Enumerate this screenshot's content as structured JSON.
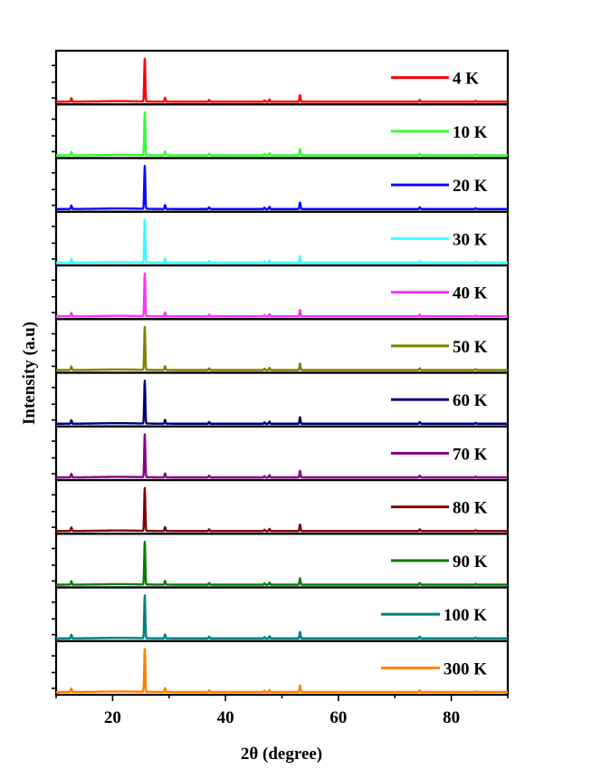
{
  "chart_data": {
    "type": "line",
    "layout": "stacked-panels",
    "xlabel": "2θ (degree)",
    "ylabel": "Intensity (a.u)",
    "xlim": [
      10,
      90
    ],
    "xticks": [
      20,
      40,
      60,
      80
    ],
    "grid": false,
    "legend_position": "top-right of each panel",
    "peaks": [
      {
        "two_theta": 12.7,
        "relative_intensity": 0.08
      },
      {
        "two_theta": 25.7,
        "relative_intensity": 1.0
      },
      {
        "two_theta": 29.3,
        "relative_intensity": 0.09
      },
      {
        "two_theta": 37.1,
        "relative_intensity": 0.04
      },
      {
        "two_theta": 46.9,
        "relative_intensity": 0.03
      },
      {
        "two_theta": 47.8,
        "relative_intensity": 0.05
      },
      {
        "two_theta": 53.2,
        "relative_intensity": 0.15
      },
      {
        "two_theta": 74.4,
        "relative_intensity": 0.04
      },
      {
        "two_theta": 84.3,
        "relative_intensity": 0.02
      }
    ],
    "series": [
      {
        "name": "4 K",
        "color": "#ff0000"
      },
      {
        "name": "10 K",
        "color": "#33ff33"
      },
      {
        "name": "20 K",
        "color": "#0a0aff"
      },
      {
        "name": "30 K",
        "color": "#33ffff"
      },
      {
        "name": "40 K",
        "color": "#ff33ff"
      },
      {
        "name": "50 K",
        "color": "#828200"
      },
      {
        "name": "60 K",
        "color": "#00007a"
      },
      {
        "name": "70 K",
        "color": "#8a008a"
      },
      {
        "name": "80 K",
        "color": "#800000"
      },
      {
        "name": "90 K",
        "color": "#008000"
      },
      {
        "name": "100 K",
        "color": "#008080"
      },
      {
        "name": "300 K",
        "color": "#ff8000"
      }
    ]
  }
}
